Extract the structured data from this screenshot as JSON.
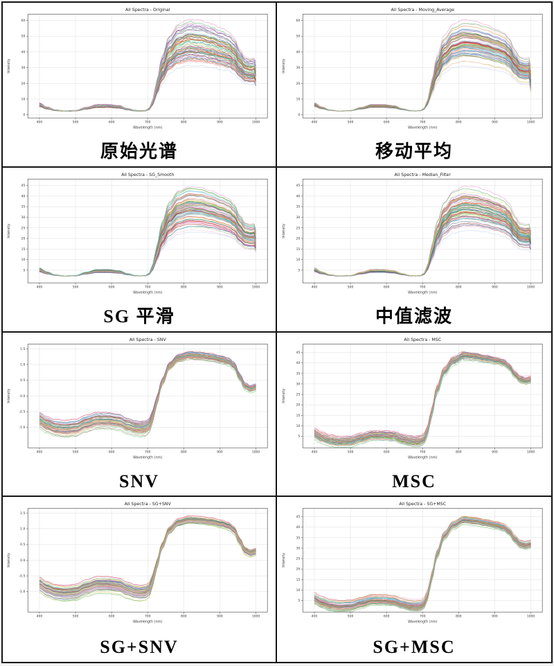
{
  "page": {
    "background": "#ffffff",
    "table_border_color": "#141414",
    "grid_color": "#dcdcdc",
    "spine_color": "#666666",
    "text_color": "#333333",
    "title_color": "#222222",
    "layout": "2 columns x 4 rows"
  },
  "palette": [
    "#e377c2",
    "#2ca02c",
    "#aec7e8",
    "#d62728",
    "#ff7f0e",
    "#1f77b4",
    "#9467bd",
    "#8c564b",
    "#17becf",
    "#bcbd22",
    "#7f7f7f",
    "#f7b6d2",
    "#98df8a",
    "#ff9896",
    "#ffbb78",
    "#c5b0d5",
    "#c49c94",
    "#9edae5",
    "#dbdb8d",
    "#e06666",
    "#6aa84f",
    "#45818e",
    "#a64d79",
    "#674ea7"
  ],
  "chart_data": [
    {
      "type": "line",
      "title": "All Spectra - Original",
      "caption": "原始光谱",
      "xlabel": "Wavelength (nm)",
      "ylabel": "Intensity",
      "x_ticks": [
        400,
        500,
        600,
        700,
        800,
        900,
        1000
      ],
      "x_tick_labels": [
        "400",
        "500",
        "600",
        "700",
        "800",
        "900",
        "1000"
      ],
      "y_ticks": [
        0,
        10,
        20,
        30,
        40,
        50,
        60
      ],
      "y_tick_labels": [
        "0",
        "10",
        "20",
        "30",
        "40",
        "50",
        "60"
      ],
      "xlim": [
        368,
        1032
      ],
      "ylim": [
        -2,
        64
      ],
      "grid": true,
      "legend": false,
      "series_count": 85,
      "mean_x": [
        400,
        420,
        445,
        470,
        500,
        530,
        560,
        590,
        620,
        645,
        665,
        680,
        695,
        705,
        715,
        725,
        740,
        760,
        785,
        815,
        845,
        875,
        905,
        925,
        940,
        955,
        970,
        985,
        1000
      ],
      "mean_y": [
        6,
        4.2,
        2.8,
        2.3,
        2.6,
        4,
        5.3,
        5.3,
        4.8,
        3.4,
        2.6,
        2.4,
        2.6,
        3.8,
        8,
        16,
        27,
        36,
        41,
        43,
        42.5,
        41,
        39,
        37.5,
        35,
        30,
        26.5,
        25.8,
        26.3
      ],
      "spread": {
        "model": "band",
        "base": 2,
        "f_min": 0.72,
        "f_max": 1.42,
        "wiggle": 0.55,
        "jitter": 0.5,
        "end_drop": 4,
        "spike": 0
      }
    },
    {
      "type": "line",
      "title": "All Spectra - Moving_Average",
      "caption": "移动平均",
      "xlabel": "Wavelength (nm)",
      "ylabel": "Intensity",
      "x_ticks": [
        400,
        500,
        600,
        700,
        800,
        900,
        1000
      ],
      "x_tick_labels": [
        "400",
        "500",
        "600",
        "700",
        "800",
        "900",
        "1000"
      ],
      "y_ticks": [
        0,
        10,
        20,
        30,
        40,
        50,
        60
      ],
      "y_tick_labels": [
        "0",
        "10",
        "20",
        "30",
        "40",
        "50",
        "60"
      ],
      "xlim": [
        368,
        1032
      ],
      "ylim": [
        -2,
        64
      ],
      "grid": true,
      "legend": false,
      "series_count": 85,
      "mean_x": [
        400,
        420,
        445,
        470,
        500,
        530,
        560,
        590,
        620,
        645,
        665,
        680,
        695,
        705,
        715,
        725,
        740,
        760,
        785,
        815,
        845,
        875,
        905,
        925,
        940,
        955,
        970,
        985,
        1000
      ],
      "mean_y": [
        6,
        4.2,
        2.8,
        2.3,
        2.6,
        4,
        5.3,
        5.3,
        4.8,
        3.4,
        2.6,
        2.4,
        2.6,
        3.8,
        8,
        16,
        27,
        36,
        41,
        43,
        42.5,
        41,
        39,
        37.5,
        35,
        30,
        26.5,
        25.8,
        26.3
      ],
      "spread": {
        "model": "band",
        "base": 2,
        "f_min": 0.72,
        "f_max": 1.42,
        "wiggle": 0.5,
        "jitter": 0.08,
        "end_drop": 10,
        "spike": 0
      }
    },
    {
      "type": "line",
      "title": "All Spectra - SG_Smooth",
      "caption": "SG 平滑",
      "xlabel": "Wavelength (nm)",
      "ylabel": "Intensity",
      "x_ticks": [
        400,
        500,
        600,
        700,
        800,
        900,
        1000
      ],
      "x_tick_labels": [
        "400",
        "500",
        "600",
        "700",
        "800",
        "900",
        "1000"
      ],
      "y_ticks": [
        5,
        10,
        15,
        20,
        25,
        30,
        35,
        40,
        45
      ],
      "y_tick_labels": [
        "5",
        "10",
        "15",
        "20",
        "25",
        "30",
        "35",
        "40",
        "45"
      ],
      "xlim": [
        368,
        1032
      ],
      "ylim": [
        -1,
        48
      ],
      "grid": true,
      "legend": false,
      "series_count": 85,
      "mean_x": [
        400,
        420,
        445,
        470,
        500,
        530,
        560,
        590,
        620,
        645,
        665,
        680,
        695,
        705,
        715,
        725,
        740,
        760,
        785,
        815,
        845,
        875,
        905,
        925,
        940,
        955,
        970,
        985,
        1000
      ],
      "mean_y": [
        4.9,
        3.6,
        2.6,
        2.2,
        2.4,
        3.5,
        4.4,
        4.4,
        4,
        3,
        2.4,
        2.3,
        2.4,
        3.3,
        6.4,
        12.2,
        20.3,
        26.8,
        30.5,
        31.9,
        31.6,
        30.5,
        29,
        27.9,
        26.1,
        22.4,
        19.9,
        19.4,
        19.7
      ],
      "spread": {
        "model": "band",
        "base": 2,
        "f_min": 0.72,
        "f_max": 1.42,
        "wiggle": 0.4,
        "jitter": 0.06,
        "end_drop": 3,
        "spike": 0
      }
    },
    {
      "type": "line",
      "title": "All Spectra - Median_Filter",
      "caption": "中值滤波",
      "xlabel": "Wavelength (nm)",
      "ylabel": "Intensity",
      "x_ticks": [
        400,
        500,
        600,
        700,
        800,
        900,
        1000
      ],
      "x_tick_labels": [
        "400",
        "500",
        "600",
        "700",
        "800",
        "900",
        "1000"
      ],
      "y_ticks": [
        5,
        10,
        15,
        20,
        25,
        30,
        35,
        40,
        45
      ],
      "y_tick_labels": [
        "5",
        "10",
        "15",
        "20",
        "25",
        "30",
        "35",
        "40",
        "45"
      ],
      "xlim": [
        368,
        1032
      ],
      "ylim": [
        -1,
        48
      ],
      "grid": true,
      "legend": false,
      "series_count": 85,
      "mean_x": [
        400,
        420,
        445,
        470,
        500,
        530,
        560,
        590,
        620,
        645,
        665,
        680,
        695,
        705,
        715,
        725,
        740,
        760,
        785,
        815,
        845,
        875,
        905,
        925,
        940,
        955,
        970,
        985,
        1000
      ],
      "mean_y": [
        4.9,
        3.6,
        2.6,
        2.2,
        2.4,
        3.5,
        4.4,
        4.4,
        4,
        3,
        2.4,
        2.3,
        2.4,
        3.3,
        6.4,
        12.2,
        20.3,
        26.8,
        30.5,
        31.9,
        31.6,
        30.5,
        29,
        27.9,
        26.1,
        22.4,
        19.9,
        19.4,
        19.7
      ],
      "spread": {
        "model": "band",
        "base": 2,
        "f_min": 0.72,
        "f_max": 1.42,
        "wiggle": 0.4,
        "jitter": 0.18,
        "end_drop": 3,
        "spike": 0
      }
    },
    {
      "type": "line",
      "title": "All Spectra - SNV",
      "caption": "SNV",
      "xlabel": "Wavelength (nm)",
      "ylabel": "Intensity",
      "x_ticks": [
        400,
        500,
        600,
        700,
        800,
        900,
        1000
      ],
      "x_tick_labels": [
        "400",
        "500",
        "600",
        "700",
        "800",
        "900",
        "1000"
      ],
      "y_ticks": [
        -1.0,
        -0.5,
        0.0,
        0.5,
        1.0,
        1.5
      ],
      "y_tick_labels": [
        "-1.0",
        "-0.5",
        "0.0",
        "0.5",
        "1.0",
        "1.5"
      ],
      "xlim": [
        368,
        1032
      ],
      "ylim": [
        -1.65,
        1.65
      ],
      "grid": true,
      "legend": false,
      "series_count": 70,
      "mean_x": [
        400,
        420,
        445,
        470,
        500,
        530,
        560,
        590,
        620,
        645,
        665,
        680,
        695,
        705,
        715,
        725,
        740,
        760,
        785,
        815,
        845,
        875,
        905,
        925,
        940,
        955,
        970,
        985,
        1000
      ],
      "mean_y": [
        -0.78,
        -0.92,
        -1.02,
        -1.05,
        -1.02,
        -0.88,
        -0.78,
        -0.78,
        -0.82,
        -0.95,
        -1.02,
        -1.04,
        -1.02,
        -0.93,
        -0.6,
        -0.15,
        0.45,
        0.95,
        1.2,
        1.28,
        1.26,
        1.22,
        1.15,
        1.08,
        0.95,
        0.6,
        0.3,
        0.22,
        0.27
      ],
      "spread": {
        "model": "offset",
        "o_max": 0.26,
        "tighten": 0.55,
        "wiggle": 0.02,
        "jitter": 0.012,
        "end_drop": 0,
        "spike": 0.18
      }
    },
    {
      "type": "line",
      "title": "All Spectra - MSC",
      "caption": "MSC",
      "xlabel": "Wavelength (nm)",
      "ylabel": "Intensity",
      "x_ticks": [
        400,
        500,
        600,
        700,
        800,
        900,
        1000
      ],
      "x_tick_labels": [
        "400",
        "500",
        "600",
        "700",
        "800",
        "900",
        "1000"
      ],
      "y_ticks": [
        5,
        10,
        15,
        20,
        25,
        30,
        35,
        40,
        45
      ],
      "y_tick_labels": [
        "5",
        "10",
        "15",
        "20",
        "25",
        "30",
        "35",
        "40",
        "45"
      ],
      "xlim": [
        368,
        1032
      ],
      "ylim": [
        -0.5,
        49
      ],
      "grid": true,
      "legend": false,
      "series_count": 70,
      "mean_x": [
        400,
        420,
        445,
        470,
        500,
        530,
        560,
        590,
        620,
        645,
        665,
        680,
        695,
        705,
        715,
        725,
        740,
        760,
        785,
        815,
        845,
        875,
        905,
        925,
        940,
        955,
        970,
        985,
        1000
      ],
      "mean_y": [
        6,
        4.2,
        2.8,
        2.3,
        2.6,
        4,
        5.3,
        5.3,
        4.8,
        3.4,
        2.6,
        2.4,
        2.6,
        3.8,
        8,
        16,
        27,
        36,
        41,
        43.5,
        43,
        42,
        41,
        40,
        38,
        34.5,
        32,
        31.3,
        31.8
      ],
      "spread": {
        "model": "offset",
        "o_max": 2.6,
        "tighten": 0.3,
        "wiggle": 0.35,
        "jitter": 0.25,
        "end_drop": 0,
        "spike": 3
      }
    },
    {
      "type": "line",
      "title": "All Spectra - SG+SNV",
      "caption": "SG+SNV",
      "xlabel": "Wavelength (nm)",
      "ylabel": "Intensity",
      "x_ticks": [
        400,
        500,
        600,
        700,
        800,
        900,
        1000
      ],
      "x_tick_labels": [
        "400",
        "500",
        "600",
        "700",
        "800",
        "900",
        "1000"
      ],
      "y_ticks": [
        -1.0,
        -0.5,
        0.0,
        0.5,
        1.0,
        1.5
      ],
      "y_tick_labels": [
        "-1.0",
        "-0.5",
        "0.0",
        "0.5",
        "1.0",
        "1.5"
      ],
      "xlim": [
        368,
        1032
      ],
      "ylim": [
        -1.65,
        1.65
      ],
      "grid": true,
      "legend": false,
      "series_count": 70,
      "mean_x": [
        400,
        420,
        445,
        470,
        500,
        530,
        560,
        590,
        620,
        645,
        665,
        680,
        695,
        705,
        715,
        725,
        740,
        760,
        785,
        815,
        845,
        875,
        905,
        925,
        940,
        955,
        970,
        985,
        1000
      ],
      "mean_y": [
        -0.78,
        -0.92,
        -1.02,
        -1.05,
        -1.02,
        -0.88,
        -0.78,
        -0.78,
        -0.82,
        -0.95,
        -1.02,
        -1.04,
        -1.02,
        -0.93,
        -0.6,
        -0.15,
        0.45,
        0.95,
        1.2,
        1.28,
        1.26,
        1.22,
        1.15,
        1.08,
        0.95,
        0.6,
        0.3,
        0.22,
        0.27
      ],
      "spread": {
        "model": "offset",
        "o_max": 0.26,
        "tighten": 0.55,
        "wiggle": 0.018,
        "jitter": 0.006,
        "end_drop": 0,
        "spike": 0
      }
    },
    {
      "type": "line",
      "title": "All Spectra - SG+MSC",
      "caption": "SG+MSC",
      "xlabel": "Wavelength (nm)",
      "ylabel": "Intensity",
      "x_ticks": [
        400,
        500,
        600,
        700,
        800,
        900,
        1000
      ],
      "x_tick_labels": [
        "400",
        "500",
        "600",
        "700",
        "800",
        "900",
        "1000"
      ],
      "y_ticks": [
        5,
        10,
        15,
        20,
        25,
        30,
        35,
        40,
        45
      ],
      "y_tick_labels": [
        "5",
        "10",
        "15",
        "20",
        "25",
        "30",
        "35",
        "40",
        "45"
      ],
      "xlim": [
        368,
        1032
      ],
      "ylim": [
        -0.5,
        49
      ],
      "grid": true,
      "legend": false,
      "series_count": 70,
      "mean_x": [
        400,
        420,
        445,
        470,
        500,
        530,
        560,
        590,
        620,
        645,
        665,
        680,
        695,
        705,
        715,
        725,
        740,
        760,
        785,
        815,
        845,
        875,
        905,
        925,
        940,
        955,
        970,
        985,
        1000
      ],
      "mean_y": [
        6,
        4.2,
        2.8,
        2.3,
        2.6,
        4,
        5.3,
        5.3,
        4.8,
        3.4,
        2.6,
        2.4,
        2.6,
        3.8,
        8,
        16,
        27,
        36,
        41,
        43.5,
        43,
        42,
        41,
        40,
        38,
        34.5,
        32,
        31.3,
        31.8
      ],
      "spread": {
        "model": "offset",
        "o_max": 2.6,
        "tighten": 0.3,
        "wiggle": 0.3,
        "jitter": 0.12,
        "end_drop": 0,
        "spike": 0
      }
    }
  ]
}
